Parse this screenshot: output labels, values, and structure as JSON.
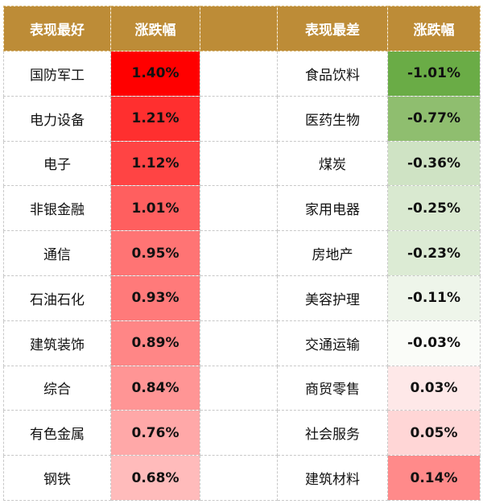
{
  "header": {
    "best_label": "表现最好",
    "change_label_left": "涨跌幅",
    "spacer": "",
    "worst_label": "表现最差",
    "change_label_right": "涨跌幅"
  },
  "colors": {
    "header_bg": "#bd8c37",
    "best_shades": [
      "#ff0000",
      "#ff2f2f",
      "#ff4444",
      "#ff5f5f",
      "#ff7474",
      "#ff7a7a",
      "#ff8686",
      "#ff9595",
      "#ffa8a8",
      "#ffbbbb"
    ],
    "worst_shades": [
      "#6aac46",
      "#8fbe6f",
      "#cfe3c4",
      "#d9e9d0",
      "#dcebd4",
      "#eef5ea",
      "#fafcf8",
      "#fee8e8",
      "#ffd6d6",
      "#ff8a8a"
    ]
  },
  "best": [
    {
      "name": "国防军工",
      "change": "1.40%"
    },
    {
      "name": "电力设备",
      "change": "1.21%"
    },
    {
      "name": "电子",
      "change": "1.12%"
    },
    {
      "name": "非银金融",
      "change": "1.01%"
    },
    {
      "name": "通信",
      "change": "0.95%"
    },
    {
      "name": "石油石化",
      "change": "0.93%"
    },
    {
      "name": "建筑装饰",
      "change": "0.89%"
    },
    {
      "name": "综合",
      "change": "0.84%"
    },
    {
      "name": "有色金属",
      "change": "0.76%"
    },
    {
      "name": "钢铁",
      "change": "0.68%"
    }
  ],
  "worst": [
    {
      "name": "食品饮料",
      "change": "-1.01%"
    },
    {
      "name": "医药生物",
      "change": "-0.77%"
    },
    {
      "name": "煤炭",
      "change": "-0.36%"
    },
    {
      "name": "家用电器",
      "change": "-0.25%"
    },
    {
      "name": "房地产",
      "change": "-0.23%"
    },
    {
      "name": "美容护理",
      "change": "-0.11%"
    },
    {
      "name": "交通运输",
      "change": "-0.03%"
    },
    {
      "name": "商贸零售",
      "change": "0.03%"
    },
    {
      "name": "社会服务",
      "change": "0.05%"
    },
    {
      "name": "建筑材料",
      "change": "0.14%"
    }
  ]
}
